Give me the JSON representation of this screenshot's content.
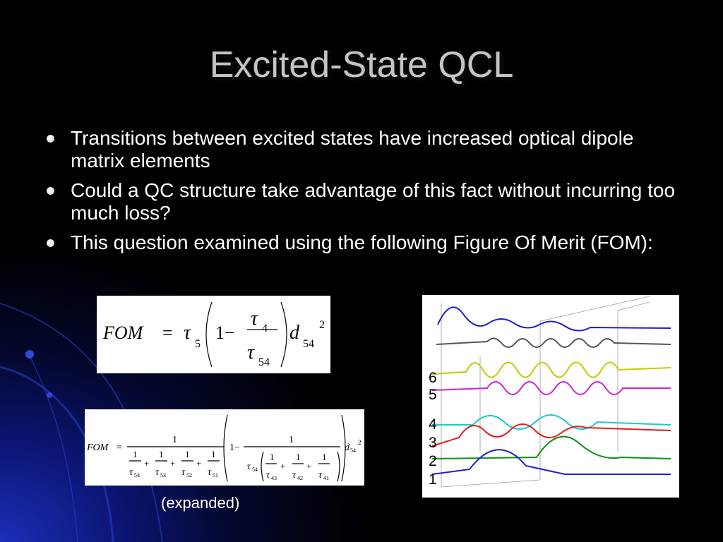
{
  "title": "Excited-State QCL",
  "bullets": [
    "Transitions between excited states have increased optical dipole matrix elements",
    "Could a QC structure take advantage of this fact without incurring too much loss?",
    "This question examined using the following Figure Of Merit (FOM):"
  ],
  "equation1": {
    "lhs": "FOM",
    "eq": "=",
    "tau": "τ",
    "one_minus": "1−",
    "d": "d",
    "sub5": "5",
    "sub4": "4",
    "sub54": "54",
    "power": "2"
  },
  "equation2": {
    "lhs": "FOM",
    "eq": "=",
    "one": "1",
    "plus": "+",
    "one_minus": "1−",
    "tau": "τ",
    "d": "d",
    "power": "2",
    "sub54": "54",
    "outer_subs": [
      "54",
      "53",
      "52",
      "51"
    ],
    "inner_subs": [
      "43",
      "42",
      "41"
    ]
  },
  "caption": "(expanded)",
  "state_labels": [
    "6",
    "5",
    "4",
    "3",
    "2",
    "1"
  ]
}
